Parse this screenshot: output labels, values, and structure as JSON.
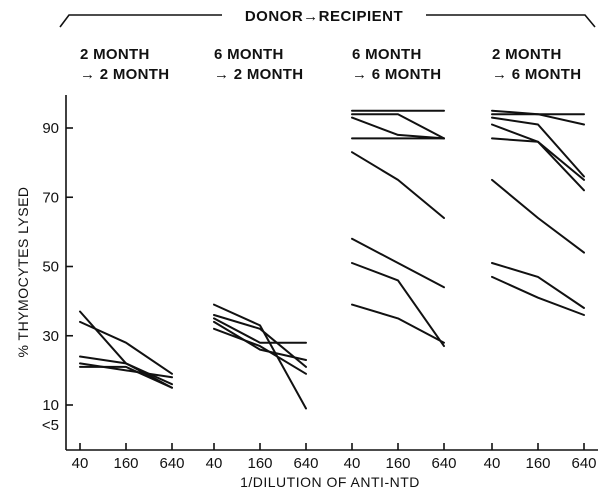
{
  "chart_data": {
    "type": "line",
    "title": "DONOR→RECIPIENT",
    "ylabel": "% THYMOCYTES  LYSED",
    "xlabel": "1/DILUTION OF ANTI-NTD",
    "ylim": [
      0,
      100
    ],
    "y_ticks": [
      "90",
      "70",
      "50",
      "30",
      "10",
      "<5"
    ],
    "x_ticks": [
      "40",
      "160",
      "640"
    ],
    "panels": [
      {
        "title_line1": "2 MONTH",
        "title_line2": "→ 2 MONTH",
        "series": [
          {
            "values": [
              37,
              22,
              15
            ]
          },
          {
            "values": [
              34,
              28,
              19
            ]
          },
          {
            "values": [
              24,
              22,
              16
            ]
          },
          {
            "values": [
              22,
              20,
              18
            ]
          },
          {
            "values": [
              21,
              21,
              15
            ]
          }
        ]
      },
      {
        "title_line1": "6 MONTH",
        "title_line2": "→ 2 MONTH",
        "series": [
          {
            "values": [
              39,
              33,
              9
            ]
          },
          {
            "values": [
              36,
              32,
              21
            ]
          },
          {
            "values": [
              35,
              28,
              28
            ]
          },
          {
            "values": [
              34,
              26,
              23
            ]
          },
          {
            "values": [
              32,
              27,
              19
            ]
          }
        ]
      },
      {
        "title_line1": "6 MONTH",
        "title_line2": "→ 6 MONTH",
        "series": [
          {
            "values": [
              95,
              95,
              95
            ]
          },
          {
            "values": [
              94,
              94,
              87
            ]
          },
          {
            "values": [
              93,
              88,
              87
            ]
          },
          {
            "values": [
              87,
              87,
              87
            ]
          },
          {
            "values": [
              83,
              75,
              64
            ]
          },
          {
            "values": [
              58,
              51,
              44
            ]
          },
          {
            "values": [
              51,
              46,
              27
            ]
          },
          {
            "values": [
              39,
              35,
              28
            ]
          }
        ]
      },
      {
        "title_line1": "2 MONTH",
        "title_line2": "→ 6 MONTH",
        "series": [
          {
            "values": [
              95,
              94,
              94
            ]
          },
          {
            "values": [
              94,
              94,
              91
            ]
          },
          {
            "values": [
              93,
              91,
              76
            ]
          },
          {
            "values": [
              91,
              86,
              75
            ]
          },
          {
            "values": [
              87,
              86,
              72
            ]
          },
          {
            "values": [
              75,
              64,
              54
            ]
          },
          {
            "values": [
              51,
              47,
              38
            ]
          },
          {
            "values": [
              47,
              41,
              36
            ]
          }
        ]
      }
    ]
  }
}
